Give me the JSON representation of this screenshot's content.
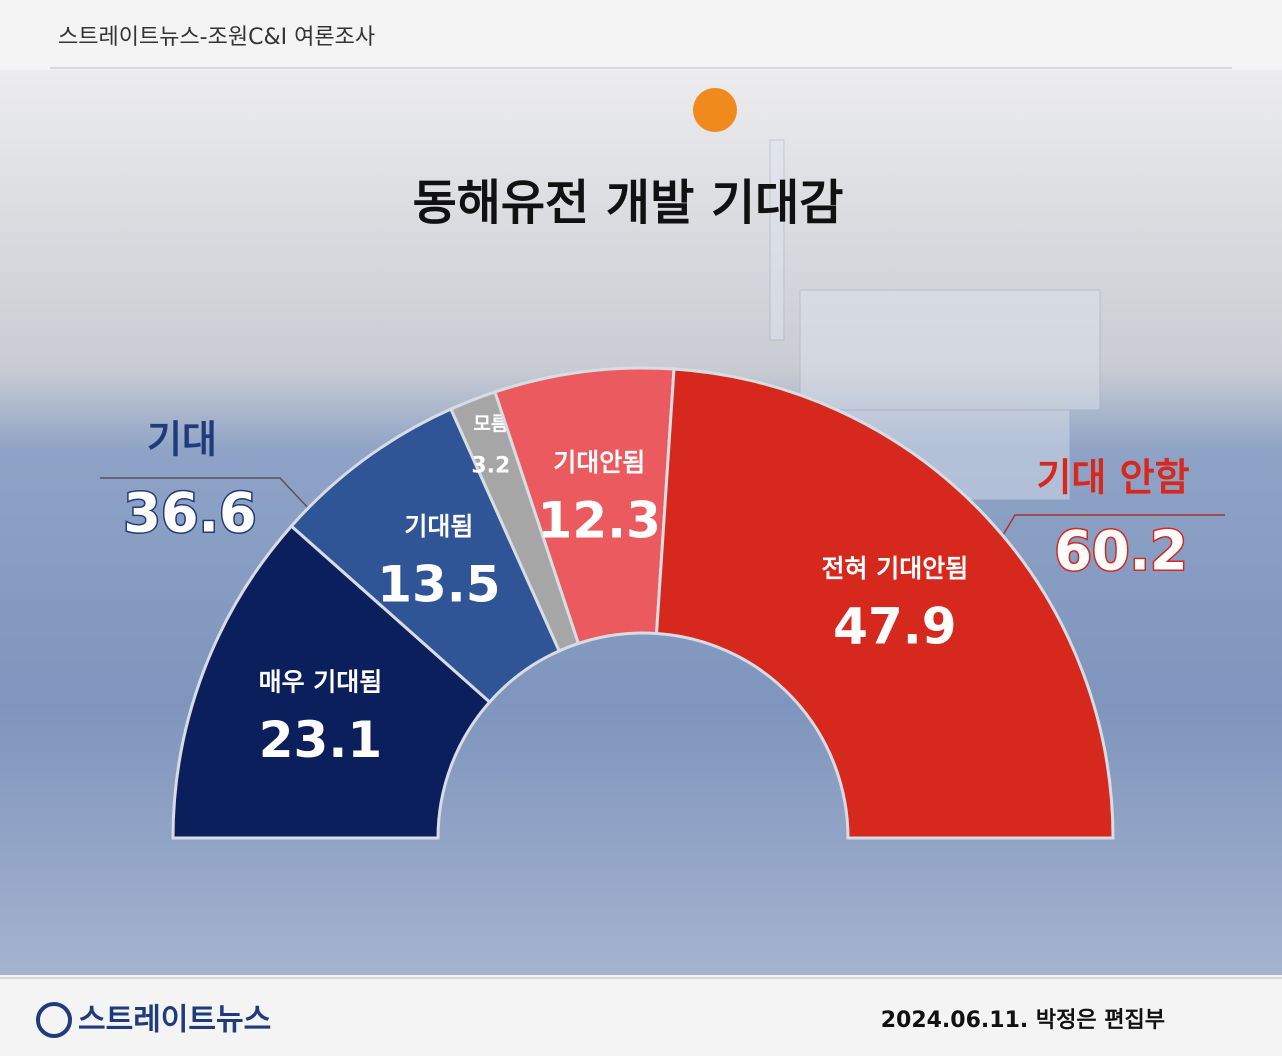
{
  "header": "스트레이트뉴스-조원C&I 여론조사",
  "chart_data": {
    "type": "half_donut",
    "title": "동해유전 개발 기대감",
    "categories": [
      "매우 기대됨",
      "기대됨",
      "모름",
      "기대안됨",
      "전혀 기대안됨"
    ],
    "values": [
      23.1,
      13.5,
      3.2,
      12.3,
      47.9
    ],
    "colors": [
      "#0b1f5c",
      "#2f5597",
      "#a6a6a6",
      "#ea5a5f",
      "#d7281e"
    ],
    "groups": [
      {
        "label": "기대",
        "value": 36.6,
        "color": "#1f3b7a"
      },
      {
        "label": "기대 안함",
        "value": 60.2,
        "color": "#d7281e"
      }
    ]
  },
  "footer": {
    "logo": "스트레이트뉴스",
    "credit": "2024.06.11. 박정은 편집부"
  }
}
